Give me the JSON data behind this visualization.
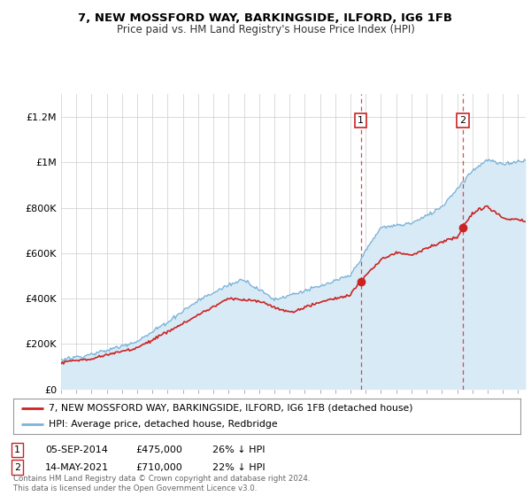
{
  "title": "7, NEW MOSSFORD WAY, BARKINGSIDE, ILFORD, IG6 1FB",
  "subtitle": "Price paid vs. HM Land Registry's House Price Index (HPI)",
  "ylim": [
    0,
    1300000
  ],
  "yticks": [
    0,
    200000,
    400000,
    600000,
    800000,
    1000000,
    1200000
  ],
  "ytick_labels": [
    "£0",
    "£200K",
    "£400K",
    "£600K",
    "£800K",
    "£1M",
    "£1.2M"
  ],
  "background_color": "#ffffff",
  "plot_bg_color": "#ffffff",
  "legend_label_red": "7, NEW MOSSFORD WAY, BARKINGSIDE, ILFORD, IG6 1FB (detached house)",
  "legend_label_blue": "HPI: Average price, detached house, Redbridge",
  "sale1_date": "05-SEP-2014",
  "sale1_price": 475000,
  "sale1_pct": "26% ↓ HPI",
  "sale2_date": "14-MAY-2021",
  "sale2_price": 710000,
  "sale2_pct": "22% ↓ HPI",
  "footnote": "Contains HM Land Registry data © Crown copyright and database right 2024.\nThis data is licensed under the Open Government Licence v3.0.",
  "red_color": "#cc2222",
  "blue_color": "#7ab3d9",
  "blue_fill_color": "#d8eaf5",
  "sale1_x": 2014.67,
  "sale2_x": 2021.36,
  "xmin": 1995,
  "xmax": 2025.5
}
